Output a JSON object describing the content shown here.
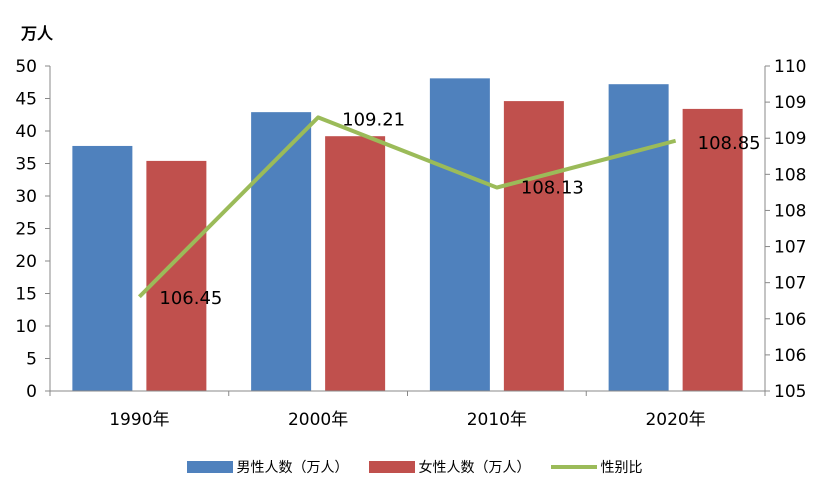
{
  "chart_data": {
    "type": "bar",
    "ylabel": "万人",
    "categories": [
      "1990年",
      "2000年",
      "2010年",
      "2020年"
    ],
    "series": [
      {
        "name": "男性人数（万人）",
        "kind": "bar",
        "axis": "left",
        "color": "#4F81BD",
        "values": [
          37.7,
          42.9,
          48.1,
          47.2
        ]
      },
      {
        "name": "女性人数（万人）",
        "kind": "bar",
        "axis": "left",
        "color": "#C0504D",
        "values": [
          35.4,
          39.2,
          44.6,
          43.4
        ]
      },
      {
        "name": "性别比",
        "kind": "line",
        "axis": "right",
        "color": "#9BBB59",
        "values": [
          106.45,
          109.21,
          108.13,
          108.85
        ],
        "labels": [
          "106.45",
          "109.21",
          "108.13",
          "108.85"
        ]
      }
    ],
    "ylim_left": [
      0,
      50
    ],
    "ylim_right": [
      105,
      110
    ],
    "yticks_left": [
      "0",
      "5",
      "10",
      "15",
      "20",
      "25",
      "30",
      "35",
      "40",
      "45",
      "50"
    ],
    "yticks_right": [
      "105",
      "106",
      "106",
      "107",
      "107",
      "108",
      "108",
      "109",
      "109",
      "110"
    ],
    "legend_position": "bottom",
    "grid": false
  }
}
